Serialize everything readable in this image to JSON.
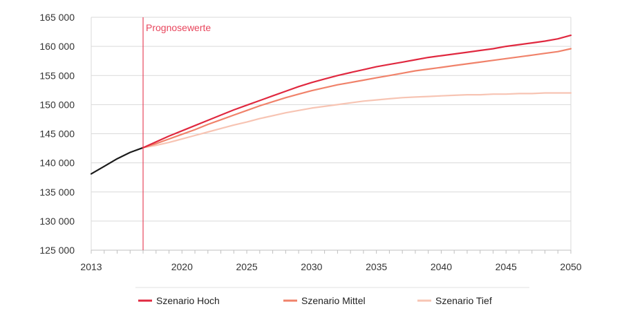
{
  "chart_data": {
    "type": "line",
    "title": "",
    "xlabel": "",
    "ylabel": "",
    "xlim": [
      2013,
      2050
    ],
    "ylim": [
      125000,
      165000
    ],
    "x_ticks": [
      {
        "value": 2013,
        "label": "2013"
      },
      {
        "value": 2020,
        "label": "2020"
      },
      {
        "value": 2025,
        "label": "2025"
      },
      {
        "value": 2030,
        "label": "2030"
      },
      {
        "value": 2035,
        "label": "2035"
      },
      {
        "value": 2040,
        "label": "2040"
      },
      {
        "value": 2045,
        "label": "2045"
      },
      {
        "value": 2050,
        "label": "2050"
      }
    ],
    "y_ticks": [
      {
        "value": 125000,
        "label": "125 000"
      },
      {
        "value": 130000,
        "label": "130 000"
      },
      {
        "value": 135000,
        "label": "135 000"
      },
      {
        "value": 140000,
        "label": "140 000"
      },
      {
        "value": 145000,
        "label": "145 000"
      },
      {
        "value": 150000,
        "label": "150 000"
      },
      {
        "value": 155000,
        "label": "155 000"
      },
      {
        "value": 160000,
        "label": "160 000"
      },
      {
        "value": 165000,
        "label": "165 000"
      }
    ],
    "grid": "horizontal",
    "legend_position": "bottom",
    "annotation": {
      "label": "Prognosewerte",
      "x": 2017,
      "color": "#e8455c"
    },
    "history": {
      "color": "#1a1a1a",
      "x": [
        2013,
        2014,
        2015,
        2016,
        2017
      ],
      "y": [
        138100,
        139400,
        140700,
        141800,
        142600
      ]
    },
    "series": [
      {
        "name": "Szenario Hoch",
        "color": "#e0283f",
        "x": [
          2017,
          2018,
          2019,
          2020,
          2021,
          2022,
          2023,
          2024,
          2025,
          2026,
          2027,
          2028,
          2029,
          2030,
          2031,
          2032,
          2033,
          2034,
          2035,
          2036,
          2037,
          2038,
          2039,
          2040,
          2041,
          2042,
          2043,
          2044,
          2045,
          2046,
          2047,
          2048,
          2049,
          2050
        ],
        "y": [
          142600,
          143600,
          144600,
          145500,
          146400,
          147300,
          148200,
          149100,
          149900,
          150700,
          151500,
          152300,
          153100,
          153800,
          154400,
          155000,
          155500,
          156000,
          156500,
          156900,
          157300,
          157700,
          158100,
          158400,
          158700,
          159000,
          159300,
          159600,
          160000,
          160300,
          160600,
          160900,
          161300,
          161900
        ]
      },
      {
        "name": "Szenario Mittel",
        "color": "#f0826a",
        "x": [
          2017,
          2018,
          2019,
          2020,
          2021,
          2022,
          2023,
          2024,
          2025,
          2026,
          2027,
          2028,
          2029,
          2030,
          2031,
          2032,
          2033,
          2034,
          2035,
          2036,
          2037,
          2038,
          2039,
          2040,
          2041,
          2042,
          2043,
          2044,
          2045,
          2046,
          2047,
          2048,
          2049,
          2050
        ],
        "y": [
          142600,
          143300,
          144100,
          144900,
          145700,
          146600,
          147400,
          148200,
          149000,
          149800,
          150500,
          151200,
          151800,
          152400,
          152900,
          153400,
          153800,
          154200,
          154600,
          155000,
          155400,
          155800,
          156100,
          156400,
          156700,
          157000,
          157300,
          157600,
          157900,
          158200,
          158500,
          158800,
          159100,
          159600
        ]
      },
      {
        "name": "Szenario Tief",
        "color": "#f7c4b3",
        "x": [
          2017,
          2018,
          2019,
          2020,
          2021,
          2022,
          2023,
          2024,
          2025,
          2026,
          2027,
          2028,
          2029,
          2030,
          2031,
          2032,
          2033,
          2034,
          2035,
          2036,
          2037,
          2038,
          2039,
          2040,
          2041,
          2042,
          2043,
          2044,
          2045,
          2046,
          2047,
          2048,
          2049,
          2050
        ],
        "y": [
          142600,
          143000,
          143500,
          144100,
          144700,
          145300,
          145900,
          146500,
          147000,
          147600,
          148100,
          148600,
          149000,
          149400,
          149700,
          150000,
          150300,
          150600,
          150800,
          151000,
          151200,
          151300,
          151400,
          151500,
          151600,
          151700,
          151700,
          151800,
          151800,
          151900,
          151900,
          152000,
          152000,
          152000
        ]
      }
    ]
  }
}
